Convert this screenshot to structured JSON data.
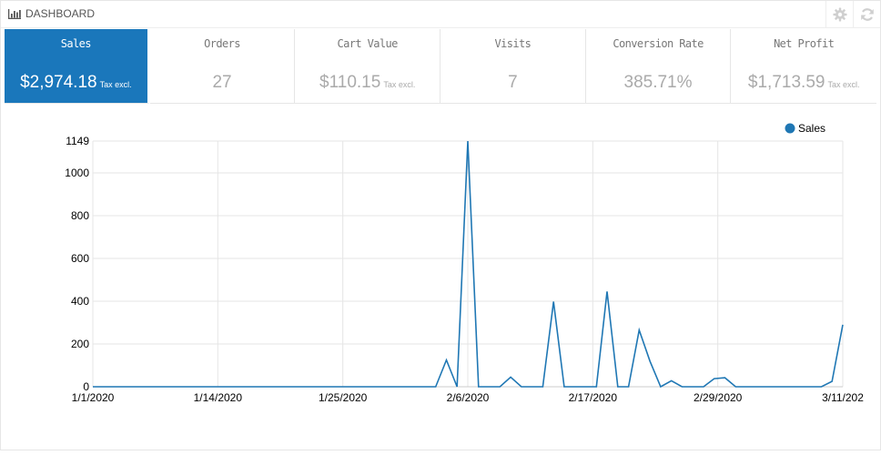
{
  "header": {
    "title": "DASHBOARD",
    "icon": "bar-chart-icon",
    "actions": [
      {
        "name": "settings",
        "icon": "gear-icon"
      },
      {
        "name": "refresh",
        "icon": "refresh-icon"
      }
    ]
  },
  "kpis": [
    {
      "label": "Sales",
      "value": "$2,974.18",
      "unit": "Tax excl.",
      "active": true
    },
    {
      "label": "Orders",
      "value": "27",
      "unit": ""
    },
    {
      "label": "Cart Value",
      "value": "$110.15",
      "unit": "Tax excl."
    },
    {
      "label": "Visits",
      "value": "7",
      "unit": ""
    },
    {
      "label": "Conversion Rate",
      "value": "385.71%",
      "unit": ""
    },
    {
      "label": "Net Profit",
      "value": "$1,713.59",
      "unit": "Tax excl."
    }
  ],
  "colors": {
    "accent": "#1a77bb",
    "line": "#1f77b4",
    "grid": "#e5e5e5"
  },
  "chart_data": {
    "type": "line",
    "legend": {
      "label": "Sales",
      "position": "top-right"
    },
    "x_ticks": [
      "1/1/2020",
      "1/14/2020",
      "1/25/2020",
      "2/6/2020",
      "2/17/2020",
      "2/29/2020",
      "3/11/202"
    ],
    "y_ticks": [
      "0",
      "200",
      "400",
      "600",
      "800",
      "1000",
      "1149"
    ],
    "ylim": [
      0,
      1149
    ],
    "grid": true,
    "series": [
      {
        "name": "Sales",
        "x": [
          "2020-01-01",
          "2020-02-02",
          "2020-02-03",
          "2020-02-04",
          "2020-02-05",
          "2020-02-06",
          "2020-02-07",
          "2020-02-08",
          "2020-02-09",
          "2020-02-10",
          "2020-02-11",
          "2020-02-12",
          "2020-02-13",
          "2020-02-14",
          "2020-02-15",
          "2020-02-16",
          "2020-02-17",
          "2020-02-18",
          "2020-02-19",
          "2020-02-20",
          "2020-02-21",
          "2020-02-22",
          "2020-02-23",
          "2020-02-24",
          "2020-02-25",
          "2020-02-26",
          "2020-02-27",
          "2020-02-28",
          "2020-02-29",
          "2020-03-01",
          "2020-03-02",
          "2020-03-03",
          "2020-03-04",
          "2020-03-05",
          "2020-03-06",
          "2020-03-07",
          "2020-03-08",
          "2020-03-09",
          "2020-03-10",
          "2020-03-11"
        ],
        "values": [
          0,
          0,
          125,
          0,
          1149,
          0,
          0,
          0,
          45,
          0,
          0,
          0,
          398,
          0,
          0,
          0,
          0,
          445,
          0,
          0,
          265,
          120,
          0,
          28,
          0,
          0,
          0,
          38,
          42,
          0,
          0,
          0,
          0,
          0,
          0,
          0,
          0,
          0,
          25,
          290
        ]
      }
    ]
  }
}
